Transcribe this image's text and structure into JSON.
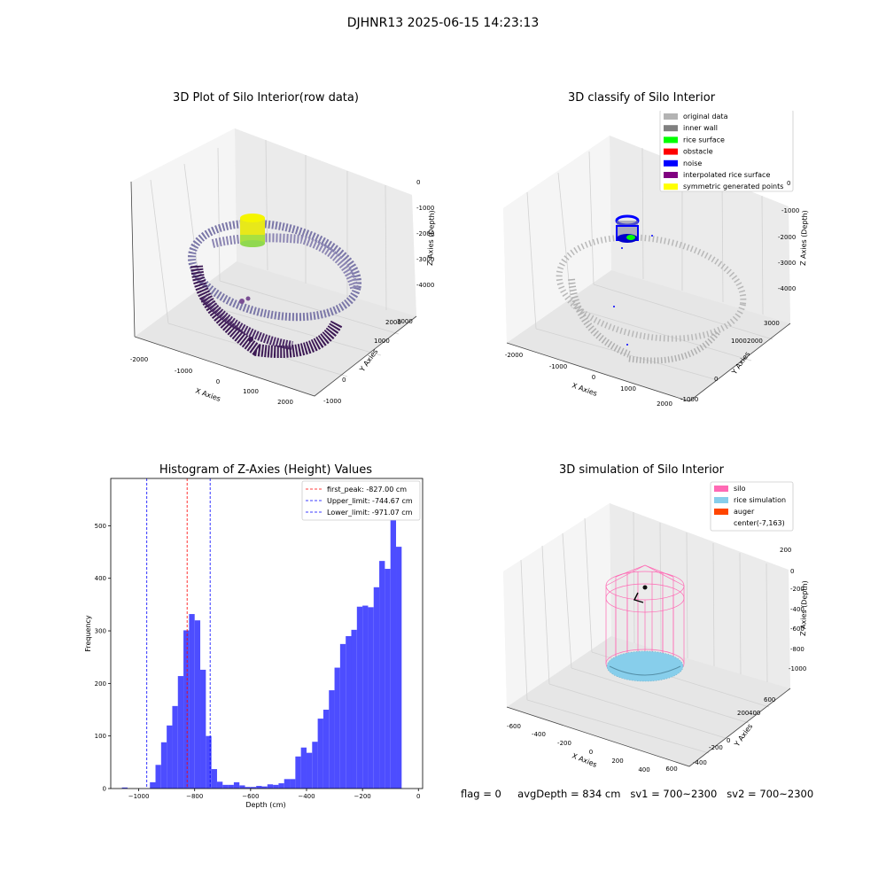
{
  "suptitle": "DJHNR13 2025-06-15 14:23:13",
  "panels": {
    "raw": {
      "title": "3D Plot of Silo Interior(row data)",
      "xlabel": "X Axies",
      "ylabel": "Y Axies",
      "zlabel": "Z Axies (Depth)",
      "xticks": [
        "-2000",
        "-1000",
        "0",
        "1000",
        "2000"
      ],
      "yticks": [
        "-1000",
        "0",
        "1000",
        "2000",
        "3000"
      ],
      "zticks": [
        "0",
        "-1000",
        "-2000",
        "-3000",
        "-4000"
      ]
    },
    "classify": {
      "title": "3D classify of Silo Interior",
      "xlabel": "X Axies",
      "ylabel": "Y Axies",
      "zlabel": "Z Axies (Depth)",
      "xticks": [
        "-2000",
        "-1000",
        "0",
        "1000",
        "2000"
      ],
      "yticks": [
        "-1000",
        "0",
        "1000",
        "2000",
        "3000"
      ],
      "zticks": [
        "0",
        "-1000",
        "-2000",
        "-3000",
        "-4000"
      ],
      "legend": [
        {
          "label": "original data",
          "color": "#b3b3b3"
        },
        {
          "label": "inner wall",
          "color": "#808080"
        },
        {
          "label": "rice surface",
          "color": "#00ff00"
        },
        {
          "label": "obstacle",
          "color": "#ff0000"
        },
        {
          "label": "noise",
          "color": "#0000ff"
        },
        {
          "label": "interpolated rice surface",
          "color": "#800080"
        },
        {
          "label": "symmetric generated points",
          "color": "#ffff00"
        }
      ]
    },
    "simulation": {
      "title": "3D simulation of Silo Interior",
      "xlabel": "X Axies",
      "ylabel": "Y Axies",
      "zlabel": "Z Axies (Depth)",
      "xticks": [
        "-600",
        "-400",
        "-200",
        "0",
        "200",
        "400",
        "600"
      ],
      "yticks": [
        "-400",
        "-200",
        "0",
        "200",
        "400",
        "600"
      ],
      "zticks": [
        "200",
        "0",
        "-200",
        "-400",
        "-600",
        "-800",
        "-1000"
      ],
      "legend": [
        {
          "label": "silo",
          "color": "#ff69b4"
        },
        {
          "label": "rice simulation",
          "color": "#87ceeb"
        },
        {
          "label": "auger",
          "color": "#ff4500"
        },
        {
          "label": "center(-7,163)",
          "color": ""
        }
      ]
    }
  },
  "chart_data": {
    "type": "bar",
    "title": "Histogram of Z-Axies (Height) Values",
    "xlabel": "Depth (cm)",
    "ylabel": "Frequency",
    "xlim": [
      -1100,
      15
    ],
    "ylim": [
      0,
      590
    ],
    "xticks": [
      -1000,
      -800,
      -600,
      -400,
      -200,
      0
    ],
    "yticks": [
      0,
      100,
      200,
      300,
      400,
      500
    ],
    "bin_width": 20,
    "bar_color": "#4d4dff",
    "bins_start": [
      -1060,
      -1040,
      -1020,
      -1000,
      -980,
      -960,
      -940,
      -920,
      -900,
      -880,
      -860,
      -840,
      -820,
      -800,
      -780,
      -760,
      -740,
      -720,
      -700,
      -680,
      -660,
      -640,
      -620,
      -600,
      -580,
      -560,
      -540,
      -520,
      -500,
      -480,
      -460,
      -440,
      -420,
      -400,
      -380,
      -360,
      -340,
      -320,
      -300,
      -280,
      -260,
      -240,
      -220,
      -200,
      -180,
      -160,
      -140,
      -120,
      -100,
      -80,
      -60,
      -40
    ],
    "values": [
      2,
      0,
      0,
      0,
      0,
      12,
      45,
      88,
      120,
      157,
      214,
      301,
      332,
      320,
      226,
      100,
      37,
      13,
      7,
      7,
      12,
      6,
      3,
      3,
      5,
      4,
      8,
      7,
      10,
      18,
      18,
      61,
      78,
      68,
      89,
      133,
      150,
      187,
      230,
      275,
      290,
      302,
      346,
      348,
      345,
      383,
      433,
      418,
      560,
      460,
      0,
      0
    ],
    "vlines": [
      {
        "label": "first_peak: -827.00 cm",
        "x": -827.0,
        "color": "#ff0000"
      },
      {
        "label": "Upper_limit: -744.67 cm",
        "x": -744.67,
        "color": "#0000ff"
      },
      {
        "label": "Lower_limit: -971.07 cm",
        "x": -971.07,
        "color": "#0000ff"
      }
    ],
    "legend_position": "upper right"
  },
  "footer": {
    "flag": "flag = 0",
    "avg": "avgDepth = 834 cm",
    "sv1": "sv1 = 700~2300",
    "sv2": "sv2 = 700~2300"
  }
}
